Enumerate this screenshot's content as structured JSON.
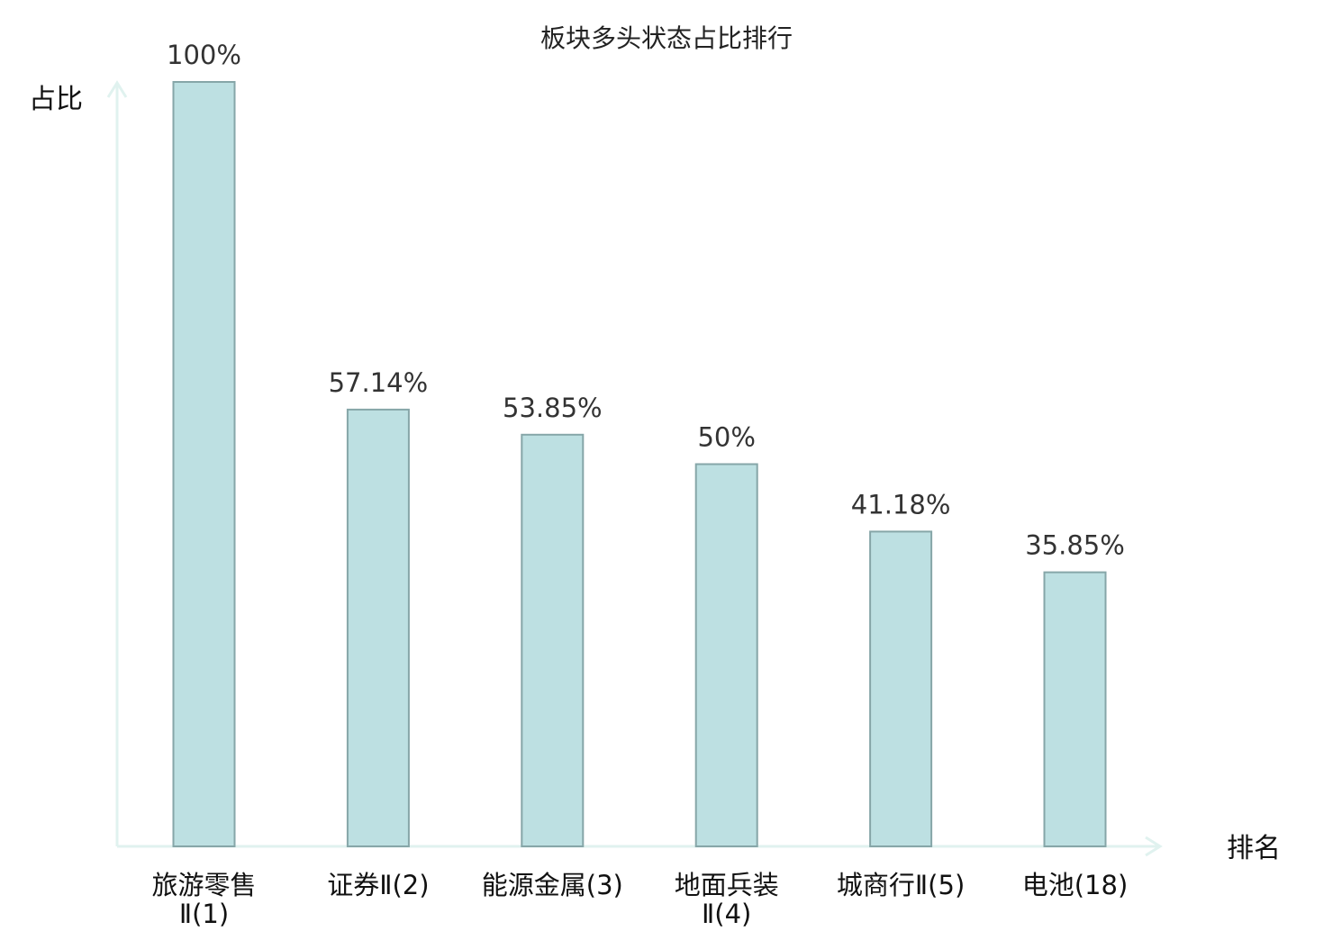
{
  "chart_data": {
    "type": "bar",
    "title": "板块多头状态占比排行",
    "ylabel": "占比",
    "xlabel": "排名",
    "ylim": [
      0,
      100
    ],
    "grid": false,
    "categories": [
      {
        "label": [
          "旅游零售",
          "Ⅱ(1)"
        ],
        "highlight": false
      },
      {
        "label": [
          "证券Ⅱ(2)"
        ],
        "highlight": false
      },
      {
        "label": [
          "能源金属(3)"
        ],
        "highlight": false
      },
      {
        "label": [
          "地面兵装",
          "Ⅱ(4)"
        ],
        "highlight": false
      },
      {
        "label": [
          "城商行Ⅱ(5)"
        ],
        "highlight": false
      },
      {
        "label": [
          "电池(18)"
        ],
        "highlight": true
      }
    ],
    "values": [
      100,
      57.14,
      53.85,
      50,
      41.18,
      35.85
    ],
    "value_labels": [
      "100%",
      "57.14%",
      "53.85%",
      "50%",
      "41.18%",
      "35.85%"
    ],
    "colors": {
      "bar_fill": "#bde0e2",
      "bar_stroke": "#86a6a8",
      "axis": "#e0f2ef",
      "highlight_text": "#e00000",
      "normal_text": "#111111",
      "value_text": "#333333"
    }
  }
}
